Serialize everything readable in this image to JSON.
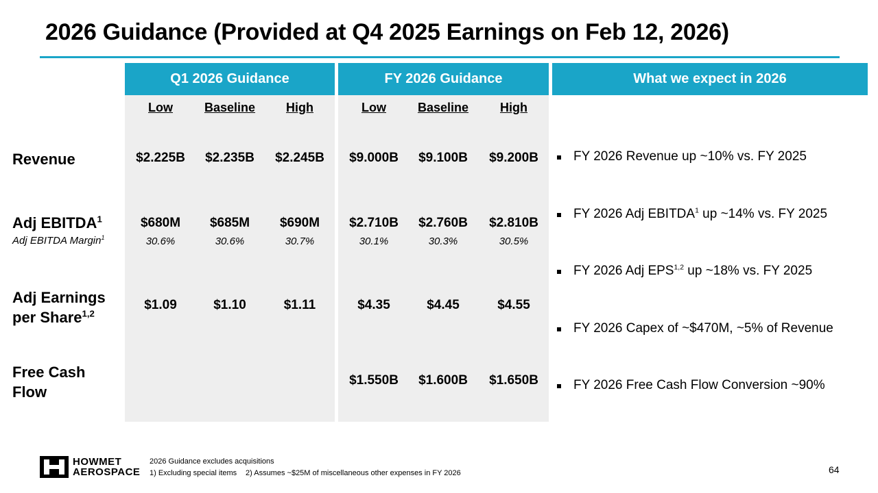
{
  "title": "2026 Guidance (Provided at Q4 2025 Earnings on Feb 12, 2026)",
  "headers": {
    "q1": "Q1 2026 Guidance",
    "fy": "FY 2026 Guidance",
    "expect": "What we expect in 2026"
  },
  "subheaders": [
    "Low",
    "Baseline",
    "High",
    "Low",
    "Baseline",
    "High"
  ],
  "rows": {
    "revenue": {
      "label": "Revenue",
      "values": [
        "$2.225B",
        "$2.235B",
        "$2.245B",
        "$9.000B",
        "$9.100B",
        "$9.200B"
      ]
    },
    "ebitda": {
      "label": "Adj EBITDA",
      "label_sup": "1",
      "sublabel": "Adj EBITDA Margin",
      "sublabel_sup": "1",
      "values": [
        "$680M",
        "$685M",
        "$690M",
        "$2.710B",
        "$2.760B",
        "$2.810B"
      ],
      "margins": [
        "30.6%",
        "30.6%",
        "30.7%",
        "30.1%",
        "30.3%",
        "30.5%"
      ]
    },
    "eps": {
      "label_line1": "Adj Earnings",
      "label_line2": "per Share",
      "label_sup": "1,2",
      "values": [
        "$1.09",
        "$1.10",
        "$1.11",
        "$4.35",
        "$4.45",
        "$4.55"
      ]
    },
    "fcf": {
      "label_line1": "Free Cash",
      "label_line2": "Flow",
      "values": [
        "",
        "",
        "",
        "$1.550B",
        "$1.600B",
        "$1.650B"
      ]
    }
  },
  "expectations": {
    "revenue": "FY 2026 Revenue up ~10% vs. FY 2025",
    "ebitda_a": "FY 2026 Adj EBITDA",
    "ebitda_sup": "1",
    "ebitda_b": " up ~14% vs. FY 2025",
    "eps_a": "FY 2026 Adj EPS",
    "eps_sup": "1,2",
    "eps_b": " up ~18% vs. FY 2025",
    "capex": "FY 2026 Capex of ~$470M, ~5% of Revenue",
    "fcf": "FY 2026 Free Cash Flow Conversion ~90%"
  },
  "logo": {
    "line1": "HOWMET",
    "line2": "AEROSPACE",
    "icon": "howmet-h-logo"
  },
  "footnotes": {
    "line1": "2026 Guidance excludes acquisitions",
    "note1": "1) Excluding special items",
    "note2": "2) Assumes ~$25M of miscellaneous other expenses in FY 2026"
  },
  "page_number": "64",
  "colors": {
    "accent": "#1aa5c8",
    "panel": "#eeeeee"
  }
}
